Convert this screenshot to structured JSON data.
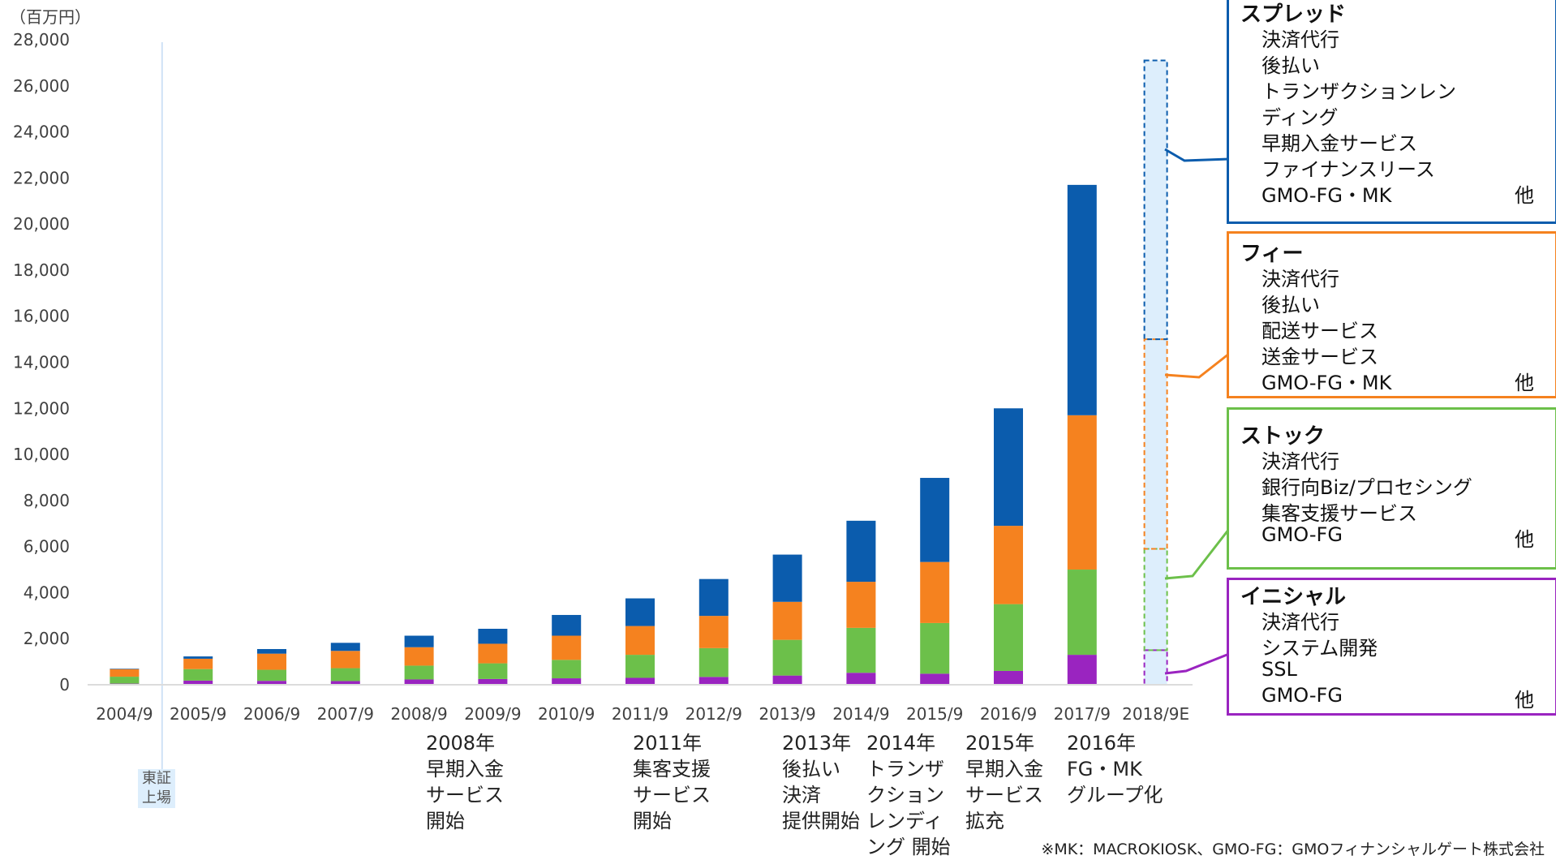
{
  "chart_data": {
    "type": "bar",
    "stacked": true,
    "yunit": "（百万円）",
    "categories": [
      "2004/9",
      "2005/9",
      "2006/9",
      "2007/9",
      "2008/9",
      "2009/9",
      "2010/9",
      "2011/9",
      "2012/9",
      "2013/9",
      "2014/9",
      "2015/9",
      "2016/9",
      "2017/9",
      "2018/9E"
    ],
    "ylim": [
      0,
      28000
    ],
    "yticks": [
      0,
      2000,
      4000,
      6000,
      8000,
      10000,
      12000,
      14000,
      16000,
      18000,
      20000,
      22000,
      24000,
      26000,
      28000
    ],
    "ytick_labels": [
      "0",
      "2,000",
      "4,000",
      "6,000",
      "8,000",
      "10,000",
      "12,000",
      "14,000",
      "16,000",
      "18,000",
      "20,000",
      "22,000",
      "24,000",
      "26,000",
      "28,000"
    ],
    "series": [
      {
        "name": "イニシャル",
        "color": "#9a24c0",
        "values": [
          50,
          180,
          170,
          160,
          230,
          250,
          280,
          300,
          340,
          400,
          520,
          480,
          600,
          1300,
          1500
        ]
      },
      {
        "name": "ストック",
        "color": "#6cc04a",
        "values": [
          300,
          500,
          480,
          560,
          600,
          680,
          800,
          1000,
          1250,
          1550,
          1950,
          2200,
          2900,
          3700,
          4400
        ]
      },
      {
        "name": "フィー",
        "color": "#f5821f",
        "values": [
          330,
          450,
          700,
          750,
          800,
          850,
          1050,
          1250,
          1400,
          1650,
          2000,
          2650,
          3400,
          6700,
          9100
        ]
      },
      {
        "name": "スプレッド",
        "color": "#0b5cad",
        "values": [
          20,
          100,
          200,
          350,
          500,
          650,
          900,
          1200,
          1600,
          2050,
          2650,
          3650,
          5100,
          10000,
          12100
        ]
      }
    ],
    "forecast_index": 14,
    "forecast_fill": "#ddeefc",
    "axis_color": "#dcdcdc",
    "tse_line_color": "#cfe2f6"
  },
  "tse_label": "東証\n上場",
  "milestones": [
    {
      "text": "2008年\n早期入金\nサービス\n開始"
    },
    {
      "text": "2011年\n集客支援\nサービス\n開始"
    },
    {
      "text": "2013年\n後払い\n決済\n提供開始"
    },
    {
      "text": "2014年\nトランザ\nクション\nレンディ\nング 開始"
    },
    {
      "text": "2015年\n早期入金\nサービス\n拡充"
    },
    {
      "text": "2016年\nFG・MK\nグループ化"
    }
  ],
  "legend": [
    {
      "title": "スプレッド",
      "color": "#0b5cad",
      "items": [
        "決済代行",
        "後払い",
        "トランザクションレン",
        "ディング",
        "早期入金サービス",
        "ファイナンスリース",
        "GMO-FG・MK"
      ],
      "other": "他"
    },
    {
      "title": "フィー",
      "color": "#f5821f",
      "items": [
        "決済代行",
        "後払い",
        "配送サービス",
        "送金サービス",
        "GMO-FG・MK"
      ],
      "other": "他"
    },
    {
      "title": "ストック",
      "color": "#6cc04a",
      "items": [
        "決済代行",
        "銀行向Biz/プロセシング",
        "集客支援サービス",
        "GMO-FG"
      ],
      "other": "他"
    },
    {
      "title": "イニシャル",
      "color": "#9a24c0",
      "items": [
        "決済代行",
        "システム開発",
        "SSL",
        "GMO-FG"
      ],
      "other": "他"
    }
  ],
  "footnote": "※MK：MACROKIOSK、GMO-FG：GMOフィナンシャルゲート株式会社"
}
